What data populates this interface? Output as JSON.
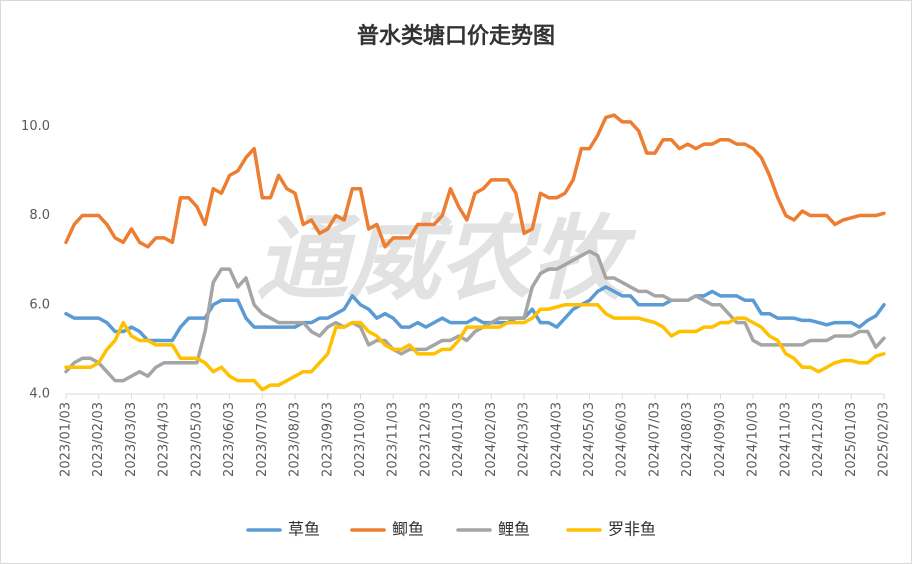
{
  "chart_data": {
    "type": "line",
    "title": "普水类塘口价走势图",
    "watermark": "通威农牧",
    "categories": [
      "2023/01/03",
      null,
      null,
      null,
      "2023/02/03",
      null,
      null,
      null,
      "2023/03/03",
      null,
      null,
      null,
      "2023/04/03",
      null,
      null,
      null,
      "2023/05/03",
      null,
      null,
      null,
      "2023/06/03",
      null,
      null,
      null,
      "2023/07/03",
      null,
      null,
      null,
      "2023/08/03",
      null,
      null,
      null,
      "2023/09/03",
      null,
      null,
      null,
      "2023/10/03",
      null,
      null,
      null,
      "2023/11/03",
      null,
      null,
      null,
      "2023/12/03",
      null,
      null,
      null,
      "2024/01/03",
      null,
      null,
      null,
      "2024/02/03",
      null,
      null,
      null,
      "2024/03/03",
      null,
      null,
      null,
      "2024/04/03",
      null,
      null,
      null,
      "2024/05/03",
      null,
      null,
      null,
      "2024/06/03",
      null,
      null,
      null,
      "2024/07/03",
      null,
      null,
      null,
      "2024/08/03",
      null,
      null,
      null,
      "2024/09/03",
      null,
      null,
      null,
      "2024/10/03",
      null,
      null,
      null,
      "2024/11/03",
      null,
      null,
      null,
      "2024/12/03",
      null,
      null,
      null,
      "2025/01/03",
      null,
      null,
      null,
      "2025/02/03"
    ],
    "series": [
      {
        "name": "草鱼",
        "color": "#5b9bd5",
        "values": [
          5.8,
          5.7,
          5.7,
          5.7,
          5.7,
          5.6,
          5.4,
          5.4,
          5.5,
          5.4,
          5.2,
          5.2,
          5.2,
          5.2,
          5.5,
          5.7,
          5.7,
          5.7,
          6.0,
          6.1,
          6.1,
          6.1,
          5.7,
          5.5,
          5.5,
          5.5,
          5.5,
          5.5,
          5.5,
          5.6,
          5.6,
          5.7,
          5.7,
          5.8,
          5.9,
          6.2,
          6.0,
          5.9,
          5.7,
          5.8,
          5.7,
          5.5,
          5.5,
          5.6,
          5.5,
          5.6,
          5.7,
          5.6,
          5.6,
          5.6,
          5.7,
          5.6,
          5.6,
          5.6,
          5.6,
          5.7,
          5.7,
          5.9,
          5.6,
          5.6,
          5.5,
          5.7,
          5.9,
          6.0,
          6.1,
          6.3,
          6.4,
          6.3,
          6.2,
          6.2,
          6.0,
          6.0,
          6.0,
          6.0,
          6.1,
          6.1,
          6.1,
          6.2,
          6.2,
          6.3,
          6.2,
          6.2,
          6.2,
          6.1,
          6.1,
          5.8,
          5.8,
          5.7,
          5.7,
          5.7,
          5.65,
          5.65,
          5.6,
          5.55,
          5.6,
          5.6,
          5.6,
          5.5,
          5.65,
          5.75,
          6.0
        ]
      },
      {
        "name": "鲫鱼",
        "color": "#ed7d31",
        "values": [
          7.4,
          7.8,
          8.0,
          8.0,
          8.0,
          7.8,
          7.5,
          7.4,
          7.7,
          7.4,
          7.3,
          7.5,
          7.5,
          7.4,
          8.4,
          8.4,
          8.2,
          7.8,
          8.6,
          8.5,
          8.9,
          9.0,
          9.3,
          9.5,
          8.4,
          8.4,
          8.9,
          8.6,
          8.5,
          7.8,
          7.9,
          7.6,
          7.7,
          8.0,
          7.9,
          8.6,
          8.6,
          7.7,
          7.8,
          7.3,
          7.5,
          7.5,
          7.5,
          7.8,
          7.8,
          7.8,
          8.0,
          8.6,
          8.2,
          7.9,
          8.5,
          8.6,
          8.8,
          8.8,
          8.8,
          8.5,
          7.6,
          7.7,
          8.5,
          8.4,
          8.4,
          8.5,
          8.8,
          9.5,
          9.5,
          9.8,
          10.2,
          10.25,
          10.1,
          10.1,
          9.9,
          9.4,
          9.4,
          9.7,
          9.7,
          9.5,
          9.6,
          9.5,
          9.6,
          9.6,
          9.7,
          9.7,
          9.6,
          9.6,
          9.5,
          9.3,
          8.9,
          8.4,
          8.0,
          7.9,
          8.1,
          8.0,
          8.0,
          8.0,
          7.8,
          7.9,
          7.95,
          8.0,
          8.0,
          8.0,
          8.05
        ]
      },
      {
        "name": "鲤鱼",
        "color": "#a5a5a5",
        "values": [
          4.5,
          4.7,
          4.8,
          4.8,
          4.7,
          4.5,
          4.3,
          4.3,
          4.4,
          4.5,
          4.4,
          4.6,
          4.7,
          4.7,
          4.7,
          4.7,
          4.7,
          5.4,
          6.5,
          6.8,
          6.8,
          6.4,
          6.6,
          6.0,
          5.8,
          5.7,
          5.6,
          5.6,
          5.6,
          5.6,
          5.4,
          5.3,
          5.5,
          5.6,
          5.5,
          5.6,
          5.5,
          5.1,
          5.2,
          5.2,
          5.0,
          4.9,
          5.0,
          5.0,
          5.0,
          5.1,
          5.2,
          5.2,
          5.3,
          5.2,
          5.4,
          5.5,
          5.6,
          5.7,
          5.7,
          5.7,
          5.7,
          6.4,
          6.7,
          6.8,
          6.8,
          6.9,
          7.0,
          7.1,
          7.2,
          7.1,
          6.6,
          6.6,
          6.5,
          6.4,
          6.3,
          6.3,
          6.2,
          6.2,
          6.1,
          6.1,
          6.1,
          6.2,
          6.1,
          6.0,
          6.0,
          5.8,
          5.6,
          5.6,
          5.2,
          5.1,
          5.1,
          5.1,
          5.1,
          5.1,
          5.1,
          5.2,
          5.2,
          5.2,
          5.3,
          5.3,
          5.3,
          5.4,
          5.4,
          5.05,
          5.25
        ]
      },
      {
        "name": "罗非鱼",
        "color": "#ffc000",
        "values": [
          4.6,
          4.6,
          4.6,
          4.6,
          4.7,
          5.0,
          5.2,
          5.6,
          5.3,
          5.2,
          5.2,
          5.1,
          5.1,
          5.1,
          4.8,
          4.8,
          4.8,
          4.7,
          4.5,
          4.6,
          4.4,
          4.3,
          4.3,
          4.3,
          4.1,
          4.2,
          4.2,
          4.3,
          4.4,
          4.5,
          4.5,
          4.7,
          4.9,
          5.5,
          5.5,
          5.6,
          5.6,
          5.4,
          5.3,
          5.1,
          5.0,
          5.0,
          5.1,
          4.9,
          4.9,
          4.9,
          5.0,
          5.0,
          5.2,
          5.5,
          5.5,
          5.5,
          5.5,
          5.5,
          5.6,
          5.6,
          5.6,
          5.7,
          5.9,
          5.9,
          5.95,
          6.0,
          6.0,
          6.0,
          6.0,
          6.0,
          5.8,
          5.7,
          5.7,
          5.7,
          5.7,
          5.65,
          5.6,
          5.5,
          5.3,
          5.4,
          5.4,
          5.4,
          5.5,
          5.5,
          5.6,
          5.6,
          5.7,
          5.7,
          5.6,
          5.5,
          5.3,
          5.2,
          4.9,
          4.8,
          4.6,
          4.6,
          4.5,
          4.6,
          4.7,
          4.75,
          4.75,
          4.7,
          4.7,
          4.85,
          4.9
        ]
      }
    ],
    "ylim": [
      4,
      10.5
    ],
    "yticks": [
      {
        "value": 4,
        "label": "4.0"
      },
      {
        "value": 6,
        "label": "6.0"
      },
      {
        "value": 8,
        "label": "8.0"
      },
      {
        "value": 10,
        "label": "10.0"
      }
    ],
    "grid": false,
    "legend": "bottom"
  }
}
